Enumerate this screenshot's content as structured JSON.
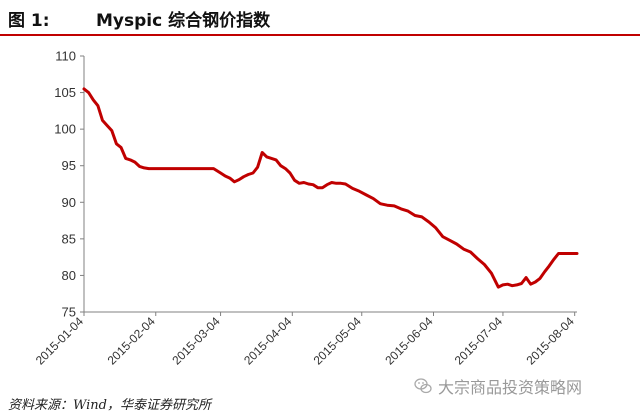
{
  "header": {
    "figure_label": "图 1:",
    "title": "Myspic 综合钢价指数"
  },
  "footer": {
    "source": "资料来源：Wind，华泰证券研究所",
    "watermark_text": "大宗商品投资策略网",
    "watermark_icon": "wechat-icon"
  },
  "colors": {
    "series": "#c00000",
    "rule": "#c00000",
    "axis": "#808080"
  },
  "chart_data": {
    "type": "line",
    "title": "Myspic 综合钢价指数",
    "xlabel": "",
    "ylabel": "",
    "ylim": [
      75,
      110
    ],
    "yticks": [
      75,
      80,
      85,
      90,
      95,
      100,
      105,
      110
    ],
    "xlim": [
      "2015-01-04",
      "2015-08-05"
    ],
    "xticks": [
      "2015-01-04",
      "2015-02-04",
      "2015-03-04",
      "2015-04-04",
      "2015-05-04",
      "2015-06-04",
      "2015-07-04",
      "2015-08-04"
    ],
    "grid": false,
    "legend": "none",
    "series": [
      {
        "color": "#c00000",
        "x": [
          "2015-01-04",
          "2015-01-06",
          "2015-01-08",
          "2015-01-10",
          "2015-01-12",
          "2015-01-14",
          "2015-01-16",
          "2015-01-18",
          "2015-01-20",
          "2015-01-22",
          "2015-01-24",
          "2015-01-26",
          "2015-01-28",
          "2015-01-30",
          "2015-02-01",
          "2015-02-04",
          "2015-02-06",
          "2015-02-10",
          "2015-02-15",
          "2015-02-20",
          "2015-02-25",
          "2015-03-01",
          "2015-03-04",
          "2015-03-06",
          "2015-03-08",
          "2015-03-10",
          "2015-03-12",
          "2015-03-14",
          "2015-03-16",
          "2015-03-18",
          "2015-03-20",
          "2015-03-22",
          "2015-03-24",
          "2015-03-25",
          "2015-03-26",
          "2015-03-28",
          "2015-03-30",
          "2015-04-01",
          "2015-04-03",
          "2015-04-05",
          "2015-04-07",
          "2015-04-09",
          "2015-04-11",
          "2015-04-13",
          "2015-04-15",
          "2015-04-17",
          "2015-04-19",
          "2015-04-21",
          "2015-04-23",
          "2015-04-25",
          "2015-04-27",
          "2015-04-30",
          "2015-05-03",
          "2015-05-06",
          "2015-05-09",
          "2015-05-12",
          "2015-05-15",
          "2015-05-18",
          "2015-05-21",
          "2015-05-24",
          "2015-05-27",
          "2015-05-30",
          "2015-06-02",
          "2015-06-05",
          "2015-06-08",
          "2015-06-11",
          "2015-06-14",
          "2015-06-17",
          "2015-06-20",
          "2015-06-23",
          "2015-06-26",
          "2015-06-29",
          "2015-07-02",
          "2015-07-04",
          "2015-07-06",
          "2015-07-08",
          "2015-07-10",
          "2015-07-12",
          "2015-07-14",
          "2015-07-16",
          "2015-07-18",
          "2015-07-20",
          "2015-07-22",
          "2015-07-24",
          "2015-07-26",
          "2015-07-28",
          "2015-07-30",
          "2015-08-01",
          "2015-08-03",
          "2015-08-05"
        ],
        "values": [
          105.5,
          105.0,
          104.0,
          103.2,
          101.2,
          100.5,
          99.8,
          98.0,
          97.5,
          96.0,
          95.8,
          95.5,
          94.9,
          94.7,
          94.6,
          94.6,
          94.6,
          94.6,
          94.6,
          94.6,
          94.6,
          94.6,
          94.0,
          93.6,
          93.3,
          92.8,
          93.1,
          93.5,
          93.8,
          94.0,
          94.8,
          96.8,
          96.2,
          96.1,
          96.0,
          95.8,
          95.0,
          94.6,
          94.0,
          93.0,
          92.6,
          92.7,
          92.5,
          92.4,
          92.0,
          92.0,
          92.4,
          92.7,
          92.6,
          92.6,
          92.5,
          91.9,
          91.5,
          91.0,
          90.5,
          89.8,
          89.6,
          89.5,
          89.1,
          88.8,
          88.2,
          88.0,
          87.3,
          86.5,
          85.3,
          84.8,
          84.3,
          83.6,
          83.2,
          82.3,
          81.5,
          80.3,
          78.4,
          78.7,
          78.8,
          78.6,
          78.7,
          78.9,
          79.7,
          78.8,
          79.1,
          79.6,
          80.5,
          81.3,
          82.2,
          83.0,
          83.0,
          83.0,
          83.0,
          83.0
        ]
      }
    ]
  }
}
